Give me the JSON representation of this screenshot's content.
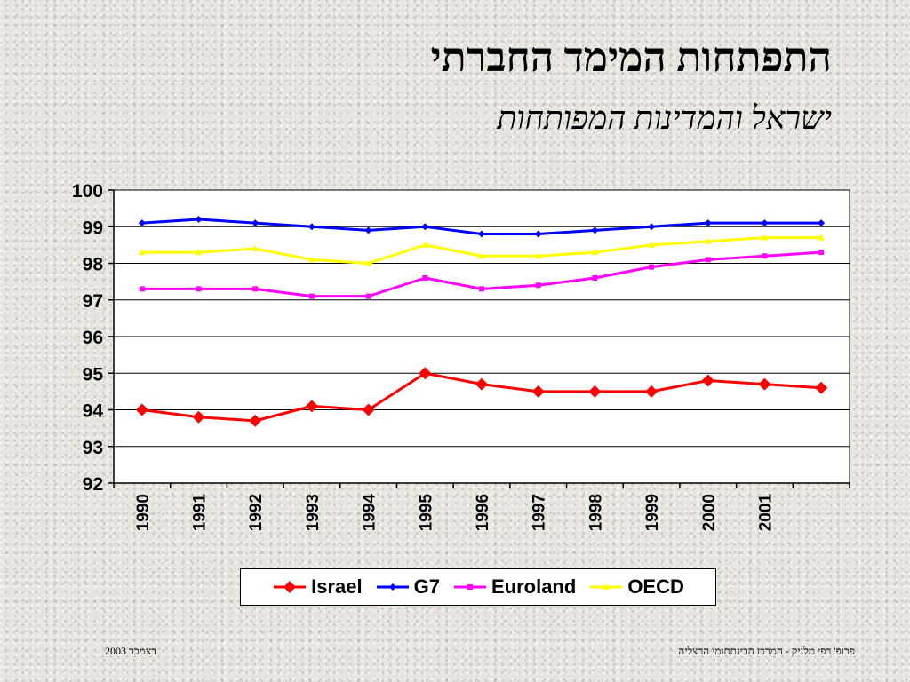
{
  "slide": {
    "title": "התפתחות המימד החברתי",
    "subtitle": "ישראל והמדינות המפותחות",
    "footer_left": "דצמבר  2003",
    "footer_right": "פרופ' רפי מלניק - המרכז הבינתחומי הרצליה"
  },
  "chart_data": {
    "type": "line",
    "title": "",
    "xlabel": "",
    "ylabel": "",
    "ylim": [
      92,
      100
    ],
    "yticks": [
      100,
      99,
      98,
      97,
      96,
      95,
      94,
      93,
      92
    ],
    "x": [
      "1990",
      "1991",
      "1992",
      "1993",
      "1994",
      "1995",
      "1996",
      "1997",
      "1998",
      "1999",
      "2000",
      "2001",
      ""
    ],
    "grid": true,
    "legend_position": "bottom",
    "series": [
      {
        "name": "Israel",
        "color": "#ff0000",
        "marker": "diamond",
        "values": [
          94.0,
          93.8,
          93.7,
          94.1,
          94.0,
          95.0,
          94.7,
          94.5,
          94.5,
          94.5,
          94.8,
          94.7,
          94.6
        ]
      },
      {
        "name": "G7",
        "color": "#0000ff",
        "marker": "diamond",
        "values": [
          99.1,
          99.2,
          99.1,
          99.0,
          98.9,
          99.0,
          98.8,
          98.8,
          98.9,
          99.0,
          99.1,
          99.1,
          99.1
        ]
      },
      {
        "name": "Euroland",
        "color": "#ff00ff",
        "marker": "square",
        "values": [
          97.3,
          97.3,
          97.3,
          97.1,
          97.1,
          97.6,
          97.3,
          97.4,
          97.6,
          97.9,
          98.1,
          98.2,
          98.3
        ]
      },
      {
        "name": "OECD",
        "color": "#ffff00",
        "marker": "triangle",
        "values": [
          98.3,
          98.3,
          98.4,
          98.1,
          98.0,
          98.5,
          98.2,
          98.2,
          98.3,
          98.5,
          98.6,
          98.7,
          98.7
        ]
      }
    ]
  }
}
